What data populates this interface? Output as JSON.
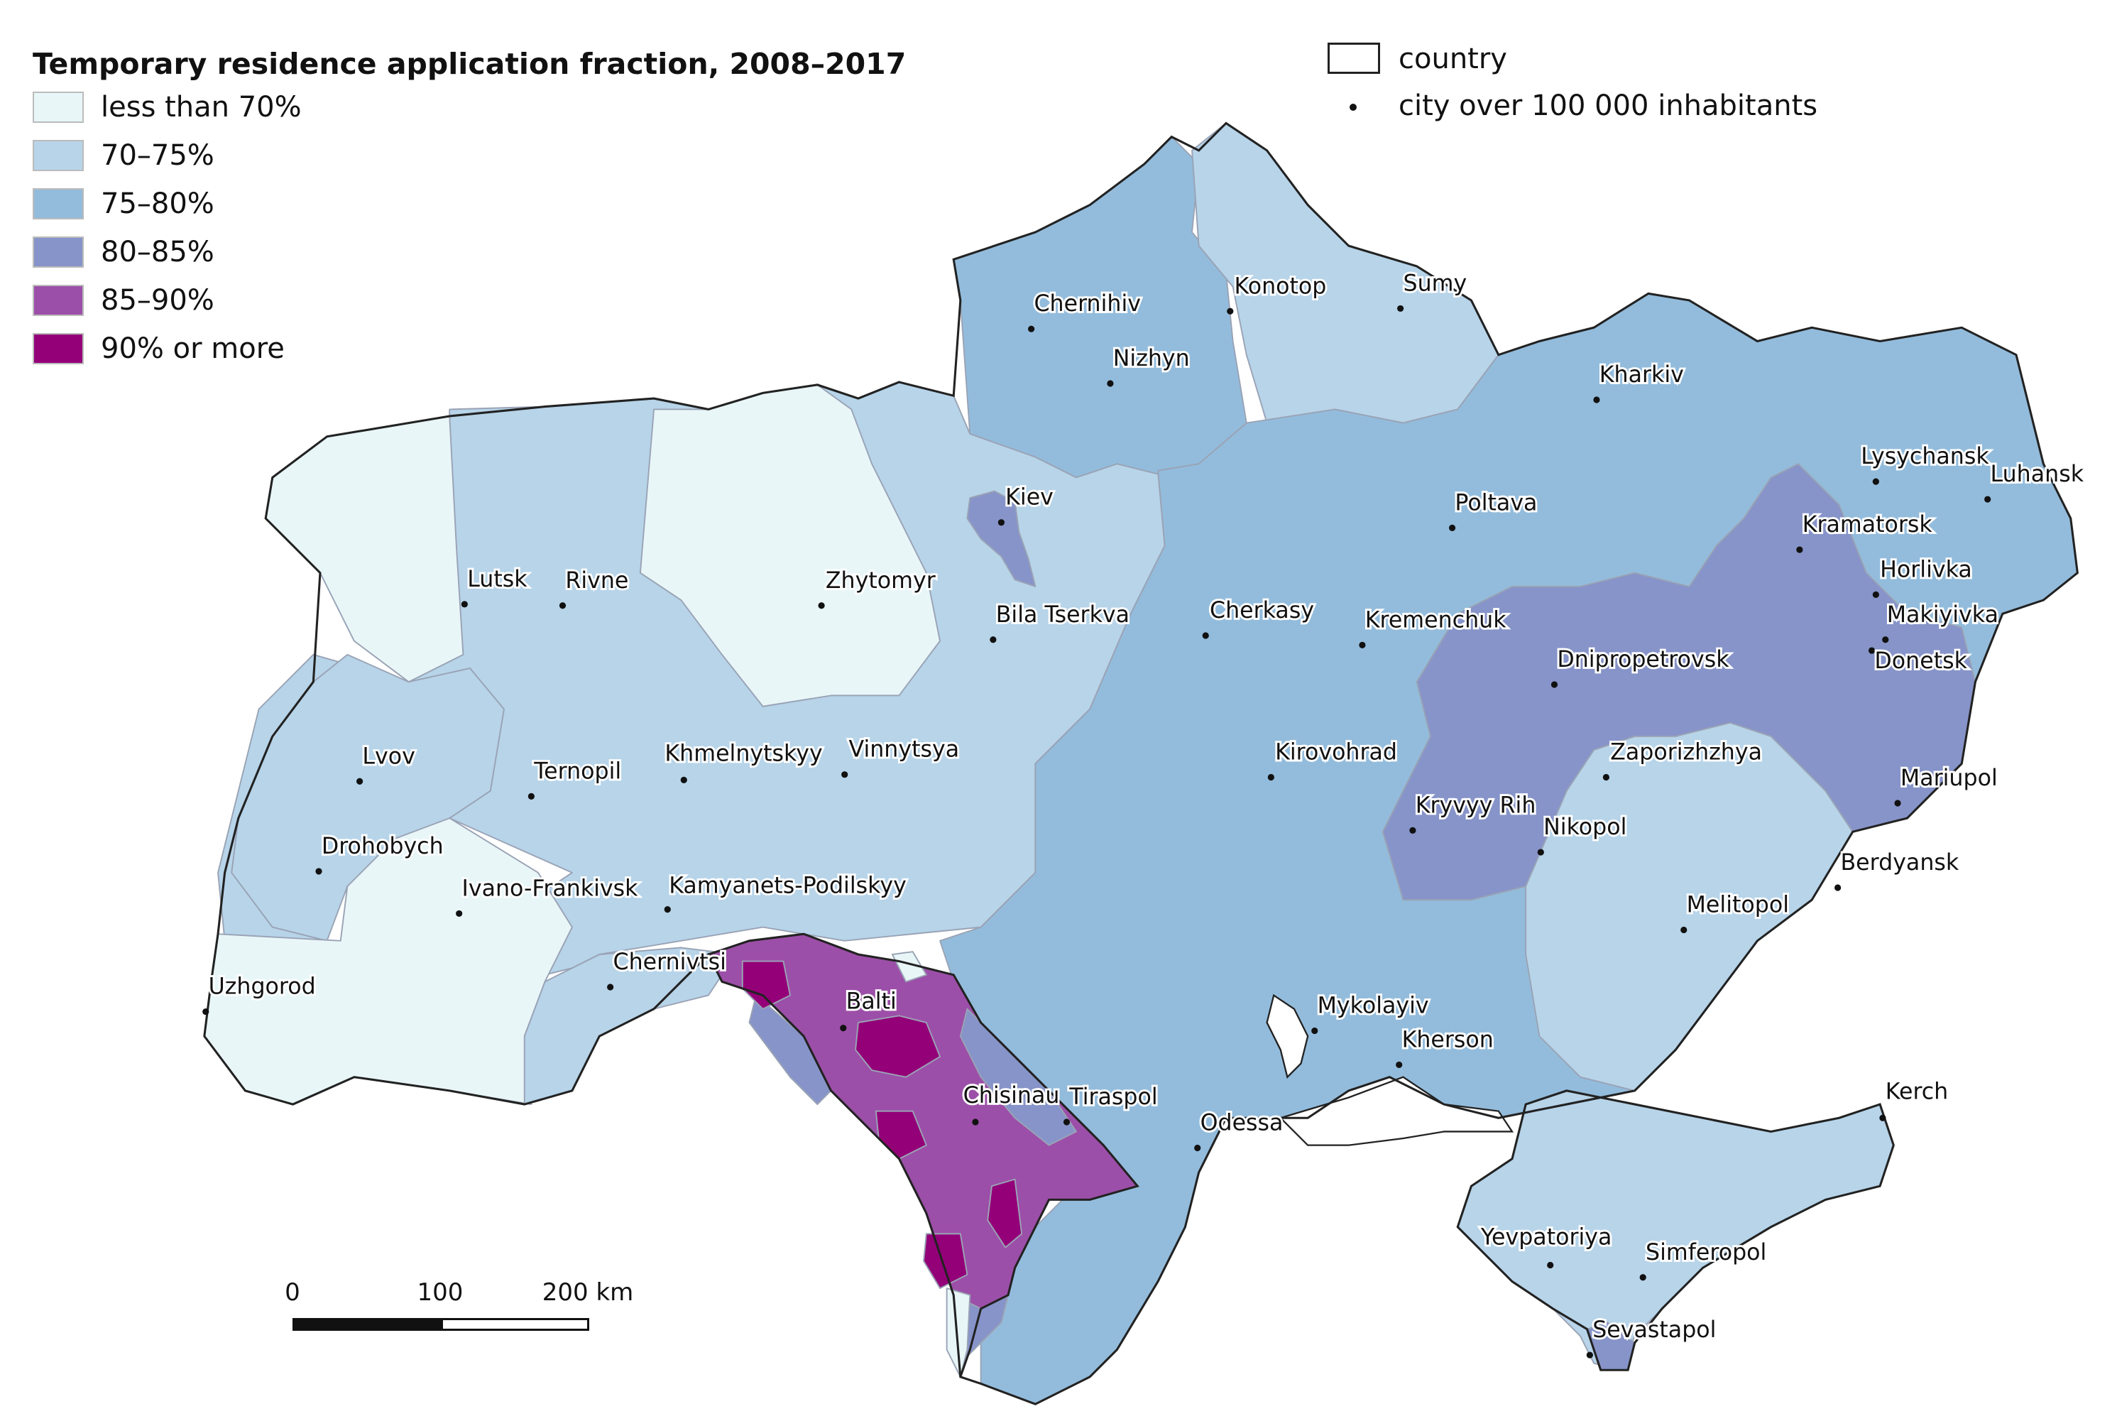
{
  "legend": {
    "title": "Temporary residence application fraction, 2008–2017",
    "classes": [
      {
        "label": "less than 70%",
        "color": "#e8f6f8"
      },
      {
        "label": "70–75%",
        "color": "#b7d4e9"
      },
      {
        "label": "75–80%",
        "color": "#93bcdc"
      },
      {
        "label": "80–85%",
        "color": "#8794c9"
      },
      {
        "label": "85–90%",
        "color": "#9c4fa8"
      },
      {
        "label": "90% or more",
        "color": "#940078"
      }
    ],
    "country_label": "country",
    "city_label": "city over 100 000 inhabitants"
  },
  "scale": {
    "labels": [
      "0",
      "100",
      "200 km"
    ]
  },
  "cities": [
    {
      "name": "Chernihiv"
    },
    {
      "name": "Konotop"
    },
    {
      "name": "Sumy"
    },
    {
      "name": "Nizhyn"
    },
    {
      "name": "Kharkiv"
    },
    {
      "name": "Lysychansk"
    },
    {
      "name": "Luhansk"
    },
    {
      "name": "Kiev"
    },
    {
      "name": "Poltava"
    },
    {
      "name": "Kramatorsk"
    },
    {
      "name": "Horlivka"
    },
    {
      "name": "Makiyivka"
    },
    {
      "name": "Donetsk"
    },
    {
      "name": "Lutsk"
    },
    {
      "name": "Rivne"
    },
    {
      "name": "Zhytomyr"
    },
    {
      "name": "Bila Tserkva"
    },
    {
      "name": "Cherkasy"
    },
    {
      "name": "Kremenchuk"
    },
    {
      "name": "Dnipropetrovsk"
    },
    {
      "name": "Lvov"
    },
    {
      "name": "Ternopil"
    },
    {
      "name": "Khmelnytskyy"
    },
    {
      "name": "Vinnytsya"
    },
    {
      "name": "Kirovohrad"
    },
    {
      "name": "Zaporizhzhya"
    },
    {
      "name": "Mariupol"
    },
    {
      "name": "Drohobych"
    },
    {
      "name": "Kryvyy Rih"
    },
    {
      "name": "Nikopol"
    },
    {
      "name": "Ivano-Frankivsk"
    },
    {
      "name": "Kamyanets-Podilskyy"
    },
    {
      "name": "Berdyansk"
    },
    {
      "name": "Melitopol"
    },
    {
      "name": "Chernivtsi"
    },
    {
      "name": "Uzhgorod"
    },
    {
      "name": "Balti"
    },
    {
      "name": "Mykolayiv"
    },
    {
      "name": "Kherson"
    },
    {
      "name": "Chisinau"
    },
    {
      "name": "Tiraspol"
    },
    {
      "name": "Odessa"
    },
    {
      "name": "Kerch"
    },
    {
      "name": "Yevpatoriya"
    },
    {
      "name": "Simferopol"
    },
    {
      "name": "Sevastapol"
    }
  ]
}
